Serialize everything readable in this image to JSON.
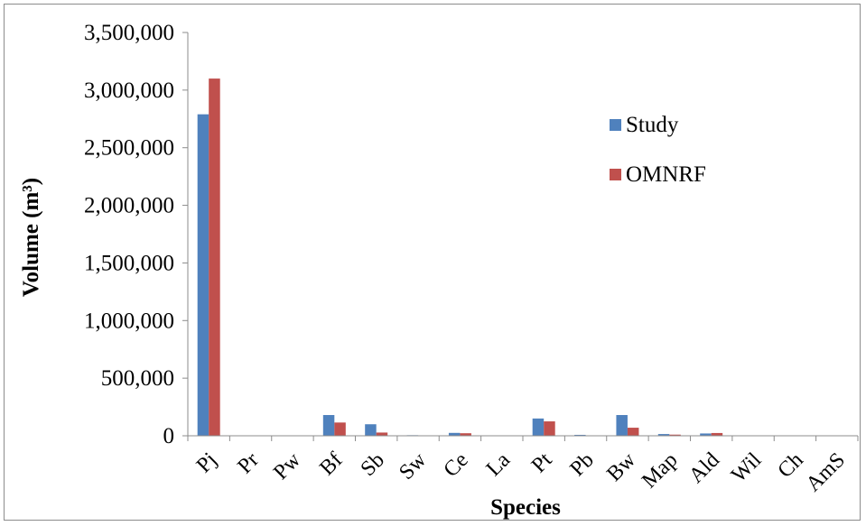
{
  "chart_data": {
    "type": "bar",
    "title": "",
    "xlabel": "Species",
    "ylabel": "Volume (m³)",
    "ylim": [
      0,
      3500000
    ],
    "yticks": [
      0,
      500000,
      1000000,
      1500000,
      2000000,
      2500000,
      3000000,
      3500000
    ],
    "ytick_labels": [
      "0",
      "500,000",
      "1,000,000",
      "1,500,000",
      "2,000,000",
      "2,500,000",
      "3,000,000",
      "3,500,000"
    ],
    "categories": [
      "Pj",
      "Pr",
      "Pw",
      "Bf",
      "Sb",
      "Sw",
      "Ce",
      "La",
      "Pt",
      "Pb",
      "Bw",
      "Map",
      "Ald",
      "Wil",
      "Ch",
      "AmS"
    ],
    "series": [
      {
        "name": "Study",
        "color": "#4f81bd",
        "values": [
          2790000,
          0,
          0,
          180000,
          100000,
          5000,
          25000,
          0,
          150000,
          8000,
          180000,
          15000,
          20000,
          0,
          0,
          0
        ]
      },
      {
        "name": "OMNRF",
        "color": "#c0504d",
        "values": [
          3100000,
          0,
          0,
          115000,
          28000,
          2000,
          22000,
          0,
          125000,
          3000,
          70000,
          10000,
          24000,
          0,
          0,
          0
        ]
      }
    ],
    "grid": false,
    "legend": "top-right"
  }
}
